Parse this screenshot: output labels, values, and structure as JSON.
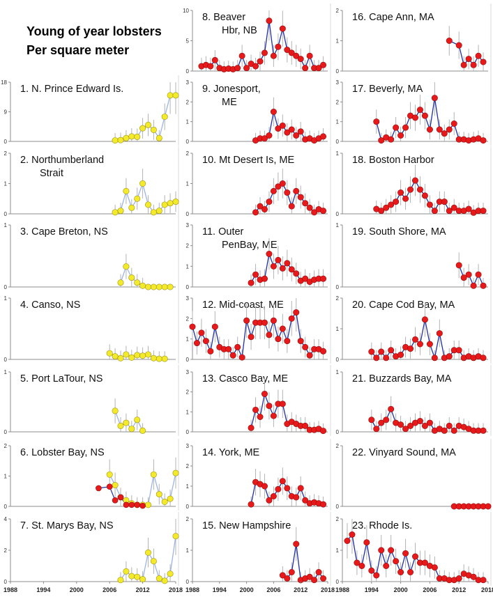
{
  "title": {
    "line1": "Young of year lobsters",
    "line2": "Per square meter"
  },
  "x_ticks": [
    "1988",
    "1994",
    "2000",
    "2006",
    "2012",
    "2018"
  ],
  "colors": {
    "yellow_marker": "#f2ea2b",
    "red_marker": "#e8191b",
    "yellow_line": "#9bb6e4",
    "red_line": "#1f2fa8",
    "error_bar": "#b3b3b3",
    "axis": "#8c8c8c",
    "outline": "#d9d9d9"
  },
  "chart_data": [
    {
      "type": "line",
      "id": 1,
      "label": [
        "1. N. Prince Edward Is."
      ],
      "ylim": [
        0,
        18
      ],
      "yticks": [
        0,
        9,
        18
      ],
      "color": "yellow",
      "x": [
        2007,
        2008,
        2009,
        2010,
        2011,
        2012,
        2013,
        2014,
        2015,
        2016,
        2017,
        2018
      ],
      "y": [
        0.3,
        0.4,
        1.0,
        1.5,
        1.4,
        4.0,
        5.0,
        3.5,
        1.0,
        7.5,
        14.0,
        14.0
      ]
    },
    {
      "type": "line",
      "id": 2,
      "label": [
        "2. Northumberland",
        "Strait"
      ],
      "ylim": [
        0,
        2
      ],
      "yticks": [
        0,
        1,
        2
      ],
      "color": "yellow",
      "x": [
        2007,
        2008,
        2009,
        2010,
        2011,
        2012,
        2013,
        2014,
        2015,
        2016,
        2017,
        2018
      ],
      "y": [
        0.05,
        0.1,
        0.75,
        0.2,
        0.5,
        1.0,
        0.3,
        0.05,
        0.1,
        0.3,
        0.35,
        0.4
      ]
    },
    {
      "type": "line",
      "id": 3,
      "label": [
        "3. Cape Breton, NS"
      ],
      "ylim": [
        0,
        1
      ],
      "yticks": [
        0,
        1
      ],
      "color": "yellow",
      "x": [
        2008,
        2009,
        2010,
        2011,
        2012,
        2013,
        2014,
        2015,
        2016,
        2017
      ],
      "y": [
        0.07,
        0.33,
        0.15,
        0.07,
        0.02,
        0.0,
        0.0,
        0.0,
        0.0,
        0.0
      ]
    },
    {
      "type": "line",
      "id": 4,
      "label": [
        "4. Canso, NS"
      ],
      "ylim": [
        0,
        1
      ],
      "yticks": [
        0,
        1
      ],
      "color": "yellow",
      "x": [
        2006,
        2007,
        2008,
        2009,
        2010,
        2011,
        2012,
        2013,
        2014,
        2015,
        2016
      ],
      "y": [
        0.1,
        0.05,
        0.02,
        0.08,
        0.03,
        0.07,
        0.06,
        0.08,
        0.02,
        0.01,
        0.01
      ]
    },
    {
      "type": "line",
      "id": 5,
      "label": [
        "5. Port LaTour, NS"
      ],
      "ylim": [
        0,
        1
      ],
      "yticks": [
        0,
        1
      ],
      "color": "yellow",
      "x": [
        2007,
        2008,
        2009,
        2010,
        2011,
        2012
      ],
      "y": [
        0.35,
        0.1,
        0.15,
        0.05,
        0.2,
        0.02
      ]
    },
    {
      "type": "line",
      "id": 6,
      "label": [
        "6. Lobster Bay, NS"
      ],
      "ylim": [
        0,
        2
      ],
      "yticks": [
        0,
        1,
        2
      ],
      "color": "yellow",
      "x": [
        2006,
        2007,
        2008,
        2009,
        2010,
        2011,
        2012,
        2013,
        2014,
        2015,
        2016,
        2017,
        2018
      ],
      "y": [
        1.05,
        0.7,
        0.3,
        0.2,
        0.1,
        0.05,
        0.05,
        0.05,
        1.05,
        0.4,
        0.15,
        0.25,
        1.1
      ],
      "red_x": [
        2004,
        2006,
        2007,
        2008,
        2009,
        2010,
        2011,
        2012
      ],
      "red_y": [
        0.6,
        0.65,
        0.2,
        0.3,
        0.05,
        0.05,
        0.05,
        0.02
      ]
    },
    {
      "type": "line",
      "id": 7,
      "label": [
        "7. St. Marys Bay, NS"
      ],
      "ylim": [
        0,
        4
      ],
      "yticks": [
        0,
        2,
        4
      ],
      "color": "yellow",
      "x": [
        2008,
        2009,
        2010,
        2011,
        2012,
        2013,
        2014,
        2015,
        2016,
        2017,
        2018
      ],
      "y": [
        0.1,
        0.65,
        0.35,
        0.3,
        0.15,
        1.85,
        1.3,
        0.2,
        0.05,
        0.5,
        2.9
      ]
    },
    {
      "type": "line",
      "id": 8,
      "label": [
        "8. Beaver",
        "Hbr, NB"
      ],
      "ylim": [
        0,
        10
      ],
      "yticks": [
        0,
        5,
        10
      ],
      "color": "red",
      "x": [
        1990,
        1991,
        1992,
        1993,
        1994,
        1995,
        1996,
        1997,
        1998,
        1999,
        2000,
        2001,
        2002,
        2003,
        2004,
        2005,
        2006,
        2007,
        2008,
        2009,
        2010,
        2011,
        2012,
        2013,
        2014,
        2015,
        2016,
        2017
      ],
      "y": [
        0.8,
        1.0,
        0.8,
        1.8,
        0.5,
        0.3,
        0.4,
        0.3,
        0.5,
        2.5,
        0.5,
        1.2,
        0.8,
        1.6,
        3.0,
        8.3,
        2.5,
        4.0,
        7.0,
        3.5,
        3.0,
        2.5,
        2.0,
        0.5,
        2.5,
        0.5,
        0.5,
        1.0
      ]
    },
    {
      "type": "line",
      "id": 9,
      "label": [
        "9. Jonesport,",
        "ME"
      ],
      "ylim": [
        0,
        3
      ],
      "yticks": [
        0,
        1,
        2,
        3
      ],
      "color": "red",
      "x": [
        2002,
        2003,
        2004,
        2005,
        2006,
        2007,
        2008,
        2009,
        2010,
        2011,
        2012,
        2013,
        2014,
        2015,
        2016,
        2017
      ],
      "y": [
        0.05,
        0.15,
        0.15,
        0.3,
        1.5,
        0.65,
        0.8,
        0.45,
        0.6,
        0.3,
        0.5,
        0.1,
        0.15,
        0.05,
        0.15,
        0.25
      ]
    },
    {
      "type": "line",
      "id": 10,
      "label": [
        "10. Mt Desert Is, ME"
      ],
      "ylim": [
        0,
        2
      ],
      "yticks": [
        0,
        1,
        2
      ],
      "color": "red",
      "x": [
        2002,
        2003,
        2004,
        2005,
        2006,
        2007,
        2008,
        2009,
        2010,
        2011,
        2012,
        2013,
        2014,
        2015,
        2016,
        2017
      ],
      "y": [
        0.05,
        0.25,
        0.15,
        0.4,
        0.75,
        0.9,
        1.0,
        0.7,
        0.25,
        0.75,
        0.55,
        0.35,
        0.2,
        0.05,
        0.15,
        0.1
      ]
    },
    {
      "type": "line",
      "id": 11,
      "label": [
        "11. Outer",
        "PenBay, ME"
      ],
      "ylim": [
        0,
        3
      ],
      "yticks": [
        0,
        1,
        2,
        3
      ],
      "color": "red",
      "x": [
        2001,
        2002,
        2003,
        2004,
        2005,
        2006,
        2007,
        2008,
        2009,
        2010,
        2011,
        2012,
        2013,
        2014,
        2015,
        2016,
        2017
      ],
      "y": [
        0.2,
        0.6,
        0.35,
        0.4,
        1.6,
        1.0,
        1.3,
        0.9,
        1.15,
        0.85,
        0.65,
        0.3,
        0.4,
        0.25,
        0.35,
        0.4,
        0.4
      ]
    },
    {
      "type": "line",
      "id": 12,
      "label": [
        "12. Mid-coast, ME"
      ],
      "ylim": [
        0,
        3
      ],
      "yticks": [
        0,
        1,
        2,
        3
      ],
      "color": "red",
      "x": [
        1988,
        1989,
        1990,
        1991,
        1992,
        1993,
        1994,
        1995,
        1996,
        1997,
        1998,
        1999,
        2000,
        2001,
        2002,
        2003,
        2004,
        2005,
        2006,
        2007,
        2008,
        2009,
        2010,
        2011,
        2012,
        2013,
        2014,
        2015,
        2016,
        2017
      ],
      "y": [
        1.6,
        0.8,
        1.3,
        0.9,
        0.4,
        1.6,
        0.6,
        0.5,
        0.5,
        0.2,
        0.6,
        0.1,
        1.9,
        1.1,
        1.8,
        1.8,
        1.8,
        1.2,
        1.9,
        1.0,
        1.5,
        0.9,
        2.0,
        2.3,
        0.9,
        0.6,
        0.2,
        0.5,
        0.5,
        0.4
      ]
    },
    {
      "type": "line",
      "id": 13,
      "label": [
        "13. Casco Bay, ME"
      ],
      "ylim": [
        0,
        3
      ],
      "yticks": [
        0,
        1,
        2,
        3
      ],
      "color": "red",
      "x": [
        2001,
        2002,
        2003,
        2004,
        2005,
        2006,
        2007,
        2008,
        2009,
        2010,
        2011,
        2012,
        2013,
        2014,
        2015,
        2016,
        2017
      ],
      "y": [
        0.2,
        1.1,
        0.75,
        1.9,
        1.3,
        0.8,
        1.4,
        1.4,
        0.4,
        0.5,
        0.4,
        0.3,
        0.3,
        0.1,
        0.1,
        0.15,
        0.05
      ]
    },
    {
      "type": "line",
      "id": 14,
      "label": [
        "14. York, ME"
      ],
      "ylim": [
        0,
        3
      ],
      "yticks": [
        0,
        1,
        2,
        3
      ],
      "color": "red",
      "x": [
        2001,
        2002,
        2003,
        2004,
        2005,
        2006,
        2007,
        2008,
        2009,
        2010,
        2011,
        2012,
        2013,
        2014,
        2015,
        2016,
        2017
      ],
      "y": [
        0.1,
        1.2,
        1.1,
        1.0,
        0.3,
        0.5,
        0.85,
        1.25,
        0.9,
        0.5,
        0.45,
        0.9,
        0.3,
        0.15,
        0.2,
        0.15,
        0.1
      ]
    },
    {
      "type": "line",
      "id": 15,
      "label": [
        "15. New Hampshire"
      ],
      "ylim": [
        0,
        2
      ],
      "yticks": [
        0,
        1,
        2
      ],
      "color": "red",
      "x": [
        2008,
        2009,
        2010,
        2011,
        2012,
        2013,
        2014,
        2015,
        2016,
        2017
      ],
      "y": [
        0.2,
        0.1,
        0.3,
        1.2,
        0.05,
        0.1,
        0.15,
        0.05,
        0.3,
        0.1
      ]
    },
    {
      "type": "line",
      "id": 16,
      "label": [
        "16. Cape Ann, MA"
      ],
      "ylim": [
        0,
        2
      ],
      "yticks": [
        0,
        1,
        2
      ],
      "color": "red",
      "x": [
        2010,
        2012,
        2013,
        2014,
        2015,
        2016,
        2017
      ],
      "y": [
        1.0,
        0.85,
        0.2,
        0.4,
        0.2,
        0.5,
        0.3
      ]
    },
    {
      "type": "line",
      "id": 17,
      "label": [
        "17. Beverly, MA"
      ],
      "ylim": [
        0,
        3
      ],
      "yticks": [
        0,
        1,
        2,
        3
      ],
      "color": "red",
      "x": [
        1995,
        1996,
        1997,
        1998,
        1999,
        2000,
        2001,
        2002,
        2003,
        2004,
        2005,
        2006,
        2007,
        2008,
        2009,
        2010,
        2011,
        2012,
        2013,
        2014,
        2015,
        2016,
        2017
      ],
      "y": [
        1.0,
        0.05,
        0.2,
        0.1,
        0.7,
        0.3,
        0.7,
        1.3,
        1.2,
        1.6,
        1.3,
        0.6,
        2.2,
        0.6,
        0.4,
        0.6,
        0.9,
        0.1,
        0.1,
        0.05,
        0.1,
        0.15,
        0.05
      ]
    },
    {
      "type": "line",
      "id": 18,
      "label": [
        "18.  Boston Harbor"
      ],
      "ylim": [
        0,
        1
      ],
      "yticks": [
        0,
        1
      ],
      "color": "red",
      "x": [
        1995,
        1996,
        1997,
        1998,
        1999,
        2000,
        2001,
        2002,
        2003,
        2004,
        2005,
        2006,
        2007,
        2008,
        2009,
        2010,
        2011,
        2012,
        2013,
        2014,
        2015,
        2016,
        2017
      ],
      "y": [
        0.08,
        0.05,
        0.1,
        0.15,
        0.2,
        0.35,
        0.25,
        0.4,
        0.55,
        0.4,
        0.3,
        0.15,
        0.05,
        0.2,
        0.2,
        0.05,
        0.1,
        0.05,
        0.05,
        0.08,
        0.02,
        0.05,
        0.05
      ]
    },
    {
      "type": "line",
      "id": 19,
      "label": [
        "19. South Shore, MA"
      ],
      "ylim": [
        0,
        1
      ],
      "yticks": [
        0,
        1
      ],
      "color": "red",
      "x": [
        2012,
        2013,
        2014,
        2015,
        2016,
        2017
      ],
      "y": [
        0.35,
        0.15,
        0.2,
        0.02,
        0.2,
        0.02
      ]
    },
    {
      "type": "line",
      "id": 20,
      "label": [
        "20. Cape Cod Bay, MA"
      ],
      "ylim": [
        0,
        2
      ],
      "yticks": [
        0,
        1,
        2
      ],
      "color": "red",
      "x": [
        1994,
        1995,
        1996,
        1997,
        1998,
        1999,
        2000,
        2001,
        2002,
        2003,
        2004,
        2005,
        2006,
        2007,
        2008,
        2009,
        2010,
        2011,
        2012,
        2013,
        2014,
        2015,
        2016,
        2017
      ],
      "y": [
        0.25,
        0.05,
        0.25,
        0.05,
        0.3,
        0.1,
        0.15,
        0.4,
        0.35,
        0.65,
        0.5,
        1.3,
        0.5,
        0.05,
        0.85,
        0.05,
        0.1,
        0.3,
        0.3,
        0.05,
        0.1,
        0.05,
        0.1,
        0.05
      ]
    },
    {
      "type": "line",
      "id": 21,
      "label": [
        "21. Buzzards Bay, MA"
      ],
      "ylim": [
        0,
        1
      ],
      "yticks": [
        0,
        1
      ],
      "color": "red",
      "x": [
        1994,
        1995,
        1996,
        1997,
        1998,
        1999,
        2000,
        2001,
        2002,
        2003,
        2004,
        2005,
        2006,
        2007,
        2008,
        2009,
        2010,
        2011,
        2012,
        2013,
        2014,
        2015,
        2016,
        2017
      ],
      "y": [
        0.2,
        0.05,
        0.15,
        0.2,
        0.38,
        0.15,
        0.12,
        0.05,
        0.1,
        0.15,
        0.18,
        0.1,
        0.15,
        0.02,
        0.05,
        0.02,
        0.1,
        0.02,
        0.1,
        0.08,
        0.05,
        0.02,
        0.02,
        0.02
      ]
    },
    {
      "type": "line",
      "id": 22,
      "label": [
        "22. Vinyard Sound, MA"
      ],
      "ylim": [
        0,
        2
      ],
      "yticks": [
        0,
        2
      ],
      "color": "red",
      "x": [
        2011,
        2012,
        2013,
        2014,
        2015,
        2016,
        2017,
        2018
      ],
      "y": [
        0,
        0,
        0,
        0,
        0,
        0,
        0,
        0
      ]
    },
    {
      "type": "line",
      "id": 23,
      "label": [
        "23. Rhode Is."
      ],
      "ylim": [
        0,
        2
      ],
      "yticks": [
        0,
        1,
        2
      ],
      "color": "red",
      "x": [
        1989,
        1990,
        1991,
        1992,
        1993,
        1994,
        1995,
        1996,
        1997,
        1998,
        1999,
        2000,
        2001,
        2002,
        2003,
        2004,
        2005,
        2006,
        2007,
        2008,
        2009,
        2010,
        2011,
        2012,
        2013,
        2014,
        2015,
        2016,
        2017
      ],
      "y": [
        1.3,
        1.5,
        0.6,
        0.5,
        1.25,
        0.35,
        0.2,
        1.0,
        0.5,
        1.0,
        0.65,
        0.3,
        0.9,
        0.3,
        0.8,
        0.6,
        0.6,
        0.5,
        0.45,
        0.1,
        0.1,
        0.05,
        0.05,
        0.1,
        0.25,
        0.2,
        0.15,
        0.05,
        0.05
      ]
    }
  ]
}
